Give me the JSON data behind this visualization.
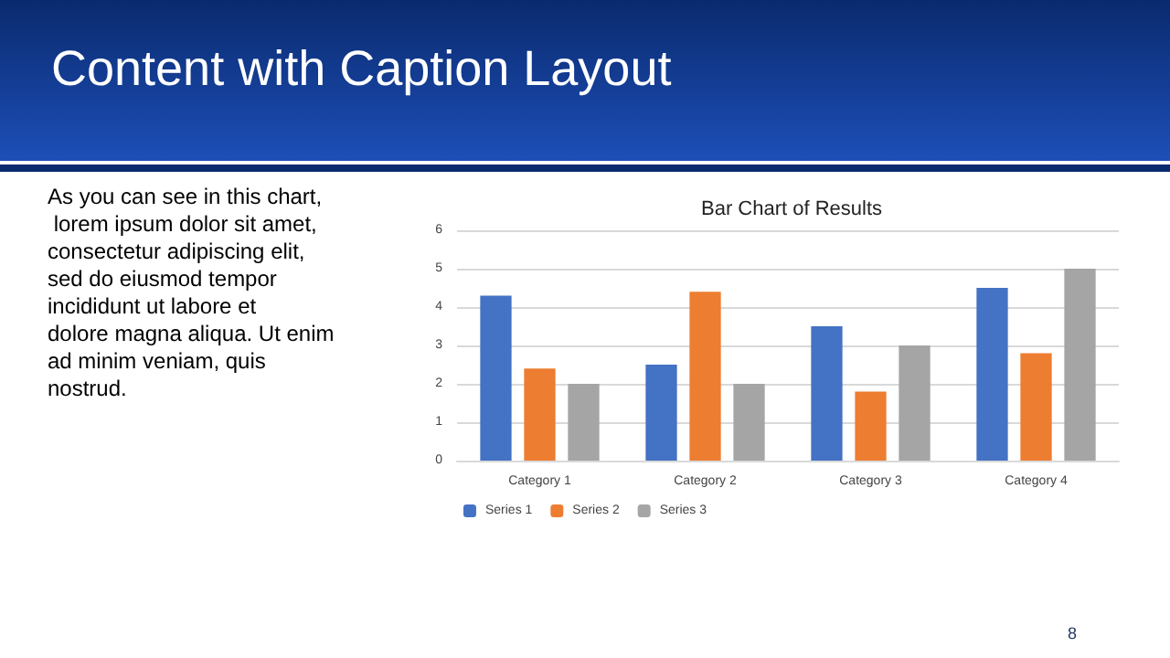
{
  "chart_data": {
    "type": "bar",
    "title": "Bar Chart of Results",
    "annotations": [
      "Content with Caption Layout",
      "As you can see in this chart, lorem ipsum dolor sit amet, consectetur adipiscing elit, sed do eiusmod tempor incididunt ut labore et dolore magna aliqua. Ut enim ad minim veniam, quis nostrud.",
      "8"
    ],
    "categories": [
      "Category 1",
      "Category 2",
      "Category 3",
      "Category 4"
    ],
    "series": [
      {
        "name": "Series 1",
        "color": "#4472c4",
        "values": [
          4.3,
          2.5,
          3.5,
          4.5
        ]
      },
      {
        "name": "Series 2",
        "color": "#ed7d31",
        "values": [
          2.4,
          4.4,
          1.8,
          2.8
        ]
      },
      {
        "name": "Series 3",
        "color": "#a5a5a5",
        "values": [
          2,
          2,
          3,
          5
        ]
      }
    ],
    "ylim": [
      0,
      6
    ],
    "yticks": [
      0,
      1,
      2,
      3,
      4,
      5,
      6
    ],
    "grid": "y",
    "legend": "bottom"
  }
}
